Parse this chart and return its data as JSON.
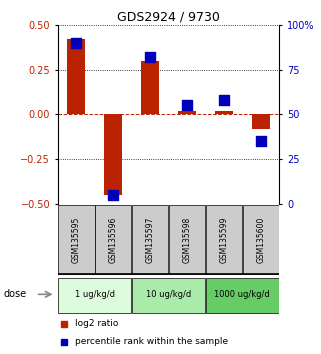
{
  "title": "GDS2924 / 9730",
  "samples": [
    "GSM135595",
    "GSM135596",
    "GSM135597",
    "GSM135598",
    "GSM135599",
    "GSM135600"
  ],
  "log2_ratio": [
    0.42,
    -0.45,
    0.3,
    0.02,
    0.02,
    -0.08
  ],
  "percentile_rank": [
    90,
    5,
    82,
    55,
    58,
    35
  ],
  "red_color": "#bb2200",
  "blue_color": "#0000bb",
  "ylim_left": [
    -0.5,
    0.5
  ],
  "ylim_right": [
    0,
    100
  ],
  "yticks_left": [
    -0.5,
    -0.25,
    0,
    0.25,
    0.5
  ],
  "yticks_right": [
    0,
    25,
    50,
    75,
    100
  ],
  "dose_groups": [
    {
      "label": "1 ug/kg/d",
      "samples": [
        0,
        1
      ],
      "color": "#ddfcdd"
    },
    {
      "label": "10 ug/kg/d",
      "samples": [
        2,
        3
      ],
      "color": "#aaeaaa"
    },
    {
      "label": "1000 ug/kg/d",
      "samples": [
        4,
        5
      ],
      "color": "#66cc66"
    }
  ],
  "dose_label": "dose",
  "legend_red": "log2 ratio",
  "legend_blue": "percentile rank within the sample",
  "bar_width": 0.5,
  "marker_size": 7,
  "label_bg": "#cccccc"
}
